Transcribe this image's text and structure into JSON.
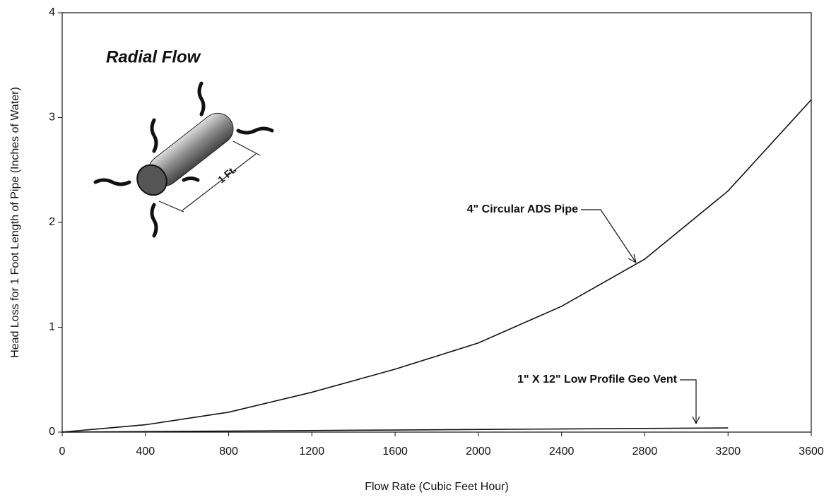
{
  "chart_data": {
    "type": "line",
    "title": "Radial Flow",
    "x_label": "Flow Rate (Cubic Feet Hour)",
    "y_label": "Head Loss for 1 Foot Length of Pipe (Inches of Water)",
    "illustration_label": "1 Ft.",
    "xlim": [
      0,
      3600
    ],
    "xticks": [
      0,
      400,
      800,
      1200,
      1600,
      2000,
      2400,
      2800,
      3200,
      3600
    ],
    "ylim": [
      0,
      4
    ],
    "yticks": [
      0,
      1,
      2,
      3,
      4
    ],
    "grid": false,
    "series": [
      {
        "name": "4\" Circular ADS Pipe",
        "color": "#111111",
        "x": [
          0,
          400,
          800,
          1200,
          1600,
          2000,
          2400,
          2800,
          3200,
          3600
        ],
        "values": [
          0,
          0.07,
          0.19,
          0.38,
          0.6,
          0.85,
          1.2,
          1.65,
          2.3,
          3.17
        ]
      },
      {
        "name": "1\" X 12\" Low Profile Geo Vent",
        "color": "#111111",
        "x": [
          0,
          800,
          1600,
          2400,
          3200
        ],
        "values": [
          0,
          0.01,
          0.02,
          0.03,
          0.04
        ]
      }
    ]
  }
}
